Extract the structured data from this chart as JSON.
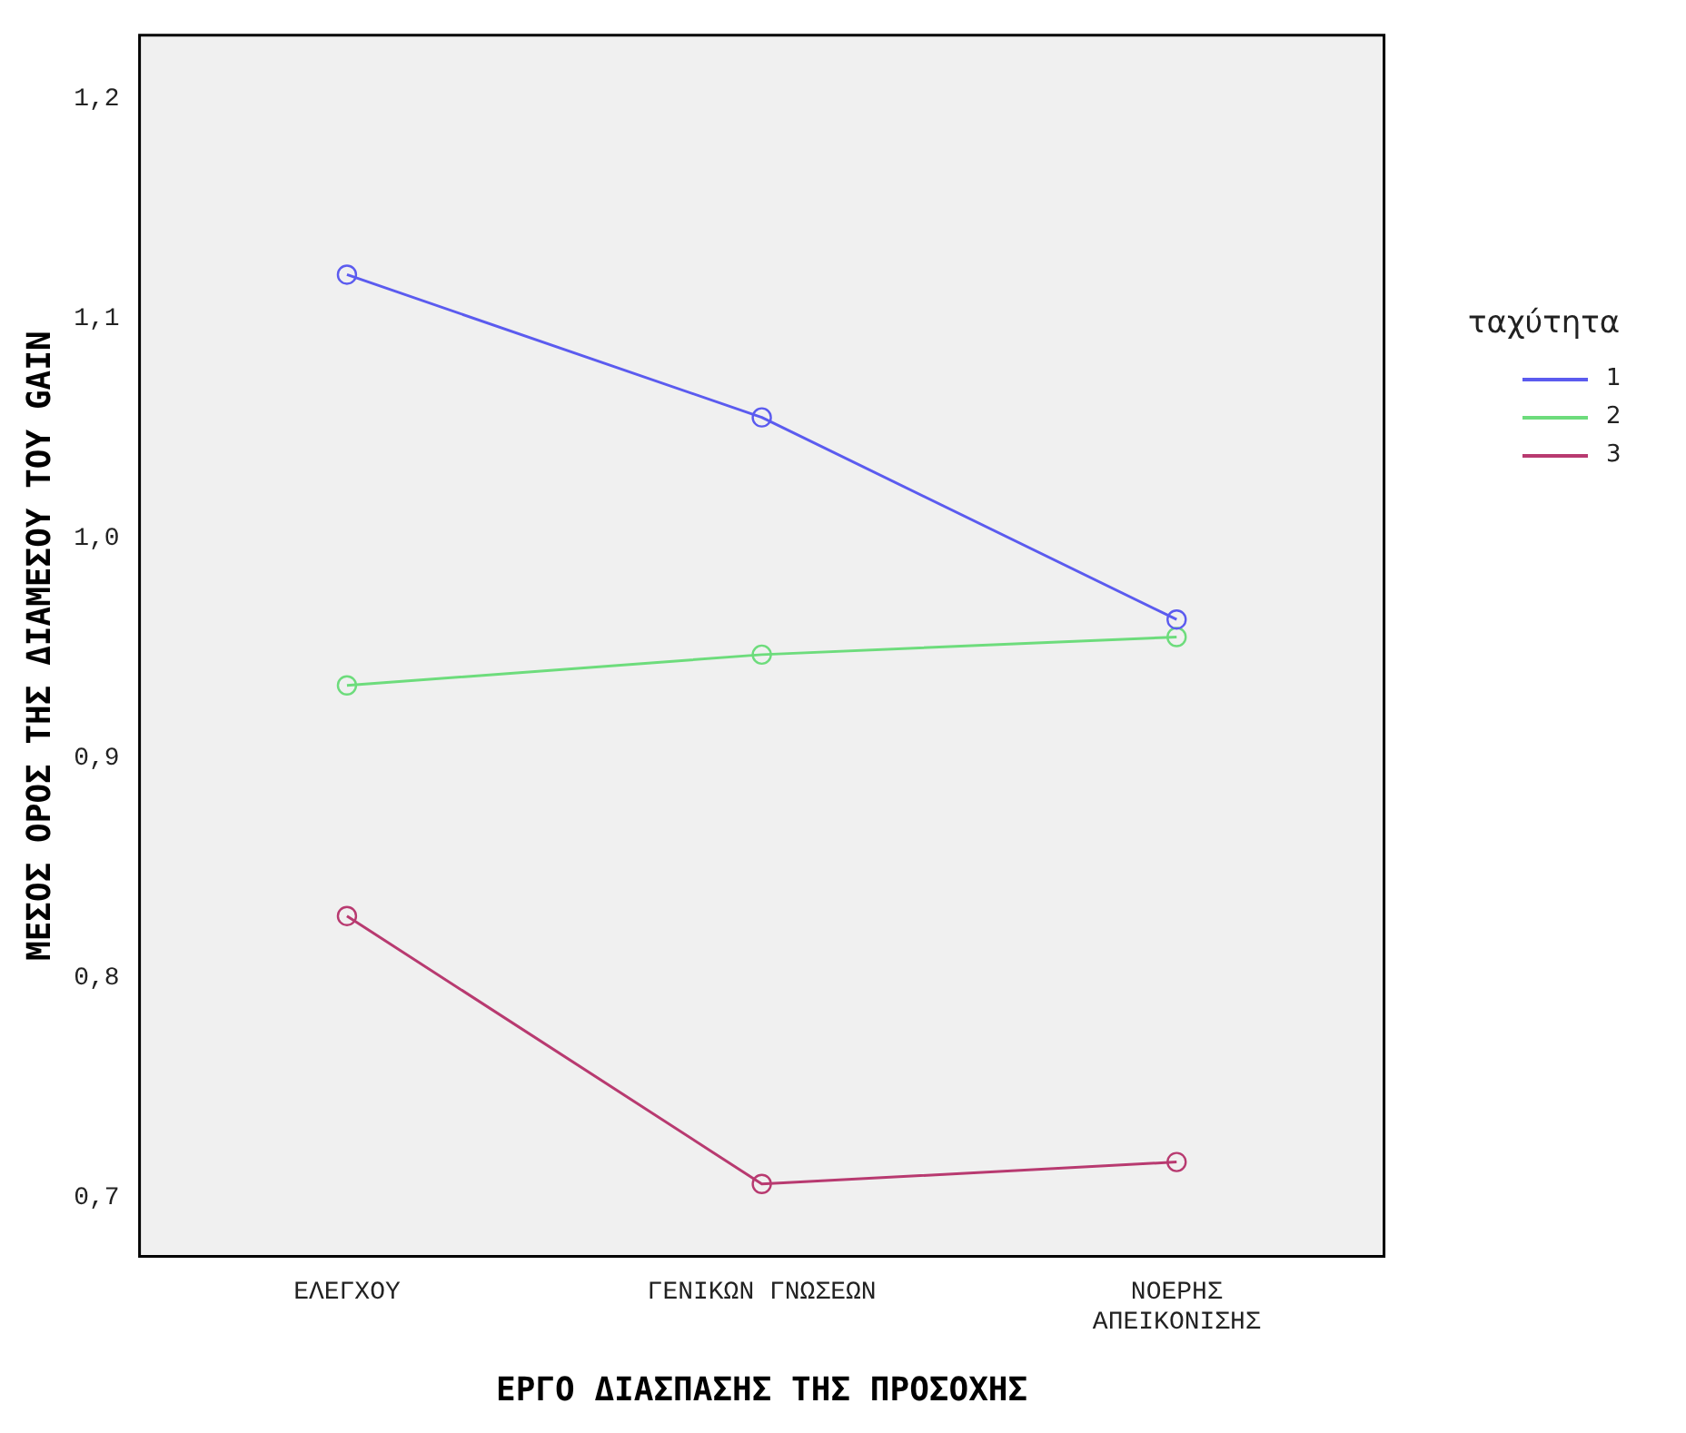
{
  "chart_data": {
    "type": "line",
    "xlabel": "ΕΡΓΟ ΔΙΑΣΠΑΣΗΣ ΤΗΣ ΠΡΟΣΟΧΗΣ",
    "ylabel": "ΜΕΣΟΣ ΟΡΟΣ ΤΗΣ ΔΙΑΜΕΣΟΥ ΤΟΥ GAIN",
    "legend_title": "ταχύτητα",
    "categories": [
      "ΕΛΕΓΧΟΥ",
      "ΓΕΝΙΚΩΝ ΓΝΩΣΕΩΝ",
      "ΝΟΕΡΗΣ ΑΠΕΙΚΟΝΙΣΗΣ"
    ],
    "series": [
      {
        "name": "1",
        "color": "#5b5bef",
        "values": [
          1.12,
          1.055,
          0.963
        ]
      },
      {
        "name": "2",
        "color": "#6ddc7c",
        "values": [
          0.933,
          0.947,
          0.955
        ]
      },
      {
        "name": "3",
        "color": "#b83a70",
        "values": [
          0.828,
          0.706,
          0.716
        ]
      }
    ],
    "ylim": [
      0.673,
      1.229
    ],
    "yticks": [
      {
        "value": 0.7,
        "label": "0,7"
      },
      {
        "value": 0.8,
        "label": "0,8"
      },
      {
        "value": 0.9,
        "label": "0,9"
      },
      {
        "value": 1.0,
        "label": "1,0"
      },
      {
        "value": 1.1,
        "label": "1,1"
      },
      {
        "value": 1.2,
        "label": "1,2"
      }
    ],
    "grid": false,
    "legend": "right",
    "marker": "circle",
    "line_style": "solid"
  }
}
